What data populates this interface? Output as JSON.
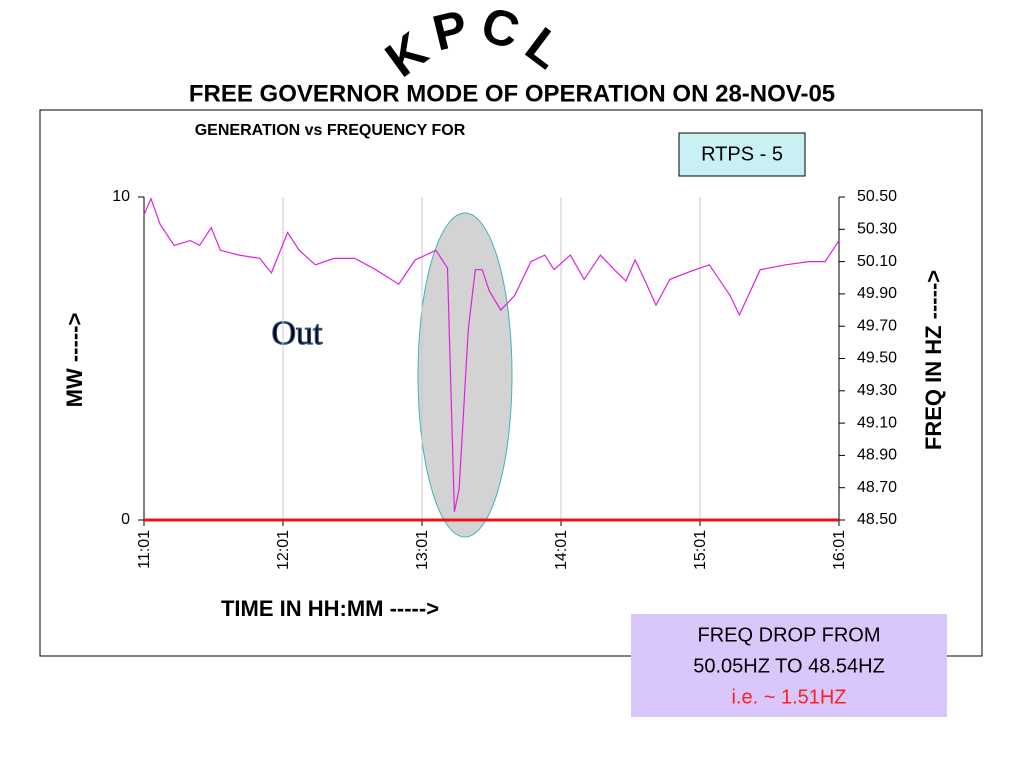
{
  "chart_data": {
    "type": "line",
    "banner": "KPCL",
    "title": "FREE GOVERNOR MODE OF OPERATION ON 28-NOV-05",
    "subtitle": "GENERATION vs FREQUENCY FOR",
    "unit_label": "RTPS - 5",
    "annotation": "Out",
    "note": [
      "FREQ DROP FROM",
      "50.05HZ TO 48.54HZ",
      "i.e. ~ 1.51HZ"
    ],
    "xlabel": "TIME IN HH:MM ----->",
    "ylabel": "MW ----->",
    "y2label": "FREQ IN HZ ----->",
    "x": [
      "11:01",
      "11:04",
      "11:08",
      "11:14",
      "11:21",
      "11:25",
      "11:30",
      "11:34",
      "11:42",
      "11:51",
      "11:56",
      "12:03",
      "12:08",
      "12:15",
      "12:23",
      "12:32",
      "12:41",
      "12:51",
      "12:58",
      "13:07",
      "13:12",
      "13:13",
      "13:15",
      "13:17",
      "13:21",
      "13:24",
      "13:27",
      "13:30",
      "13:35",
      "13:41",
      "13:48",
      "13:54",
      "13:58",
      "14:05",
      "14:11",
      "14:18",
      "14:24",
      "14:29",
      "14:33",
      "14:37",
      "14:42",
      "14:48",
      "14:57",
      "15:05",
      "15:14",
      "15:18",
      "15:27",
      "15:38",
      "15:48",
      "15:55",
      "16:01"
    ],
    "xlim": [
      "11:01",
      "16:01"
    ],
    "xticks": [
      "11:01",
      "12:01",
      "13:01",
      "14:01",
      "15:01",
      "16:01"
    ],
    "ylim": [
      0,
      10
    ],
    "yticks": [
      0,
      10
    ],
    "y2lim": [
      48.5,
      50.5
    ],
    "y2ticks": [
      {
        "value": 48.5,
        "label": "48.50"
      },
      {
        "value": 48.7,
        "label": "48.70"
      },
      {
        "value": 48.9,
        "label": "48.90"
      },
      {
        "value": 49.1,
        "label": "49.10"
      },
      {
        "value": 49.3,
        "label": "49.30"
      },
      {
        "value": 49.5,
        "label": "49.50"
      },
      {
        "value": 49.7,
        "label": "49.70"
      },
      {
        "value": 49.9,
        "label": "49.90"
      },
      {
        "value": 50.1,
        "label": "50.10"
      },
      {
        "value": 50.3,
        "label": "50.30"
      },
      {
        "value": 50.5,
        "label": "50.50"
      }
    ],
    "grid": true,
    "series": [
      {
        "color": "#e8141b",
        "axis": "y",
        "values": [
          0,
          0,
          0,
          0,
          0,
          0,
          0,
          0,
          0,
          0,
          0,
          0,
          0,
          0,
          0,
          0,
          0,
          0,
          0,
          0,
          0,
          0,
          0,
          0,
          0,
          0,
          0,
          0,
          0,
          0,
          0,
          0,
          0,
          0,
          0,
          0,
          0,
          0,
          0,
          0,
          0,
          0,
          0,
          0,
          0,
          0,
          0,
          0,
          0,
          0,
          0
        ]
      },
      {
        "color": "#e020e0",
        "axis": "y2",
        "values": [
          50.39,
          50.49,
          50.33,
          50.2,
          50.23,
          50.2,
          50.31,
          50.17,
          50.14,
          50.12,
          50.03,
          50.28,
          50.17,
          50.08,
          50.12,
          50.12,
          50.05,
          49.96,
          50.11,
          50.17,
          50.06,
          49.55,
          48.55,
          48.69,
          49.68,
          50.05,
          50.05,
          49.92,
          49.8,
          49.89,
          50.1,
          50.14,
          50.05,
          50.14,
          49.99,
          50.14,
          50.05,
          49.98,
          50.11,
          49.99,
          49.83,
          49.99,
          50.04,
          50.08,
          49.89,
          49.77,
          50.05,
          50.08,
          50.1,
          50.1,
          50.23
        ]
      }
    ]
  }
}
